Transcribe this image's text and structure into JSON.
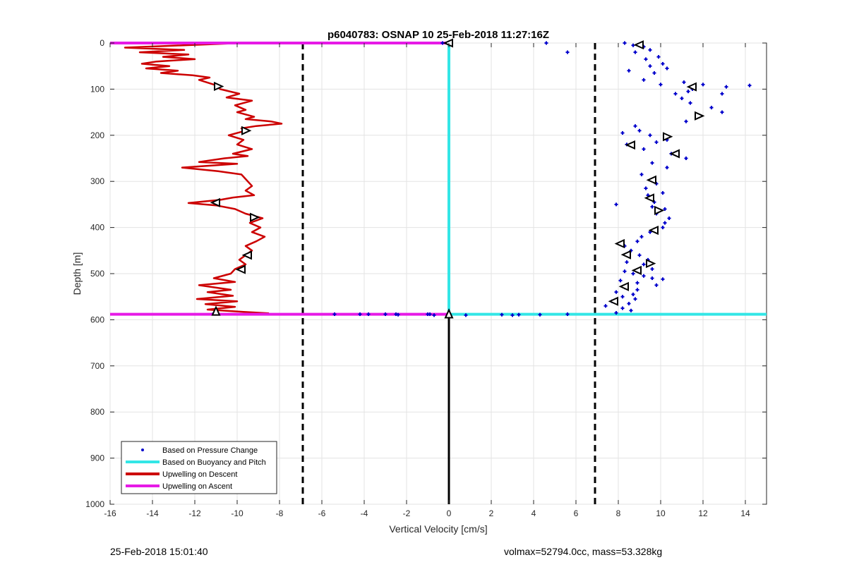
{
  "chart_data": {
    "type": "line",
    "title": "p6040783: OSNAP 10 25-Feb-2018 11:27:16Z",
    "xlabel": "Vertical Velocity [cm/s]",
    "ylabel": "Depth [m]",
    "xlim": [
      -16,
      15
    ],
    "ylim": [
      0,
      1000
    ],
    "y_reversed": true,
    "grid": true,
    "x_ticks": [
      -16,
      -14,
      -12,
      -10,
      -8,
      -6,
      -4,
      -2,
      0,
      2,
      4,
      6,
      8,
      10,
      12,
      14
    ],
    "y_ticks": [
      0,
      100,
      200,
      300,
      400,
      500,
      600,
      700,
      800,
      900,
      1000
    ],
    "legend_position": "bottom-left",
    "legend": [
      {
        "label": "Based on Pressure Change",
        "color": "#0000cc",
        "style": "dot"
      },
      {
        "label": "Based on Buoyancy and Pitch",
        "color": "#33e6e6",
        "style": "line"
      },
      {
        "label": "Upwelling on Descent",
        "color": "#cc0000",
        "style": "line"
      },
      {
        "label": "Upwelling on Ascent",
        "color": "#e61ae6",
        "style": "line"
      }
    ],
    "vertical_reference_lines": [
      {
        "x": -6.9,
        "style": "dashed",
        "color": "#000000"
      },
      {
        "x": 6.9,
        "style": "dashed",
        "color": "#000000"
      },
      {
        "x": 0,
        "style": "solid",
        "color": "#000000",
        "y_from": 590,
        "y_to": 1000
      }
    ],
    "series": [
      {
        "kind": "line",
        "color": "#cc0000",
        "points": [
          [
            -9.8,
            0
          ],
          [
            -15.3,
            10
          ],
          [
            -12.5,
            15
          ],
          [
            -14.6,
            20
          ],
          [
            -12.3,
            25
          ],
          [
            -13.5,
            30
          ],
          [
            -12.0,
            35
          ],
          [
            -13.8,
            40
          ],
          [
            -14.5,
            45
          ],
          [
            -13.2,
            50
          ],
          [
            -14.3,
            55
          ],
          [
            -12.8,
            60
          ],
          [
            -13.6,
            65
          ],
          [
            -12.1,
            70
          ],
          [
            -11.3,
            75
          ],
          [
            -11.8,
            80
          ],
          [
            -11.1,
            90
          ],
          [
            -10.8,
            100
          ],
          [
            -9.9,
            110
          ],
          [
            -10.5,
            118
          ],
          [
            -9.3,
            125
          ],
          [
            -10.1,
            135
          ],
          [
            -9.6,
            145
          ],
          [
            -10.0,
            150
          ],
          [
            -9.2,
            160
          ],
          [
            -9.6,
            165
          ],
          [
            -8.4,
            170
          ],
          [
            -7.9,
            175
          ],
          [
            -9.1,
            180
          ],
          [
            -9.8,
            185
          ],
          [
            -9.6,
            190
          ],
          [
            -10.4,
            200
          ],
          [
            -9.7,
            210
          ],
          [
            -10.0,
            220
          ],
          [
            -9.3,
            230
          ],
          [
            -10.2,
            240
          ],
          [
            -9.5,
            245
          ],
          [
            -10.6,
            250
          ],
          [
            -11.8,
            258
          ],
          [
            -10.0,
            262
          ],
          [
            -12.6,
            270
          ],
          [
            -10.9,
            278
          ],
          [
            -9.8,
            285
          ],
          [
            -9.6,
            295
          ],
          [
            -9.3,
            310
          ],
          [
            -9.6,
            320
          ],
          [
            -9.2,
            330
          ],
          [
            -10.2,
            335
          ],
          [
            -10.8,
            340
          ],
          [
            -12.3,
            347
          ],
          [
            -11.0,
            352
          ],
          [
            -10.1,
            360
          ],
          [
            -9.6,
            370
          ],
          [
            -8.8,
            380
          ],
          [
            -9.4,
            390
          ],
          [
            -8.9,
            400
          ],
          [
            -9.3,
            410
          ],
          [
            -8.7,
            420
          ],
          [
            -9.1,
            430
          ],
          [
            -9.6,
            440
          ],
          [
            -9.3,
            450
          ],
          [
            -9.6,
            460
          ],
          [
            -9.9,
            470
          ],
          [
            -9.6,
            480
          ],
          [
            -10.1,
            490
          ],
          [
            -10.3,
            500
          ],
          [
            -11.1,
            510
          ],
          [
            -10.1,
            518
          ],
          [
            -11.8,
            525
          ],
          [
            -10.3,
            535
          ],
          [
            -11.4,
            540
          ],
          [
            -10.2,
            548
          ],
          [
            -11.9,
            555
          ],
          [
            -10.0,
            560
          ],
          [
            -11.5,
            566
          ],
          [
            -10.1,
            572
          ],
          [
            -11.4,
            578
          ],
          [
            -9.7,
            583
          ],
          [
            -8.5,
            586
          ]
        ]
      },
      {
        "kind": "line",
        "color": "#e61ae6",
        "points": [
          [
            -16,
            0
          ],
          [
            0,
            0
          ],
          [
            0,
            588
          ],
          [
            -16,
            588
          ]
        ]
      },
      {
        "kind": "line",
        "color": "#33e6e6",
        "points": [
          [
            0,
            0
          ],
          [
            0,
            588
          ],
          [
            15,
            588
          ]
        ]
      },
      {
        "kind": "scatter",
        "color": "#0000cc",
        "points": [
          [
            4.6,
            0
          ],
          [
            5.6,
            20
          ],
          [
            8.3,
            0
          ],
          [
            8.7,
            5
          ],
          [
            9.2,
            8
          ],
          [
            9.5,
            15
          ],
          [
            9.9,
            30
          ],
          [
            9.3,
            35
          ],
          [
            8.8,
            20
          ],
          [
            10.1,
            45
          ],
          [
            9.5,
            50
          ],
          [
            10.3,
            55
          ],
          [
            8.5,
            60
          ],
          [
            9.7,
            65
          ],
          [
            9.2,
            80
          ],
          [
            10.0,
            90
          ],
          [
            11.1,
            85
          ],
          [
            12.0,
            90
          ],
          [
            11.5,
            100
          ],
          [
            11.3,
            105
          ],
          [
            12.9,
            110
          ],
          [
            13.1,
            95
          ],
          [
            14.2,
            92
          ],
          [
            10.7,
            110
          ],
          [
            11.0,
            120
          ],
          [
            11.4,
            130
          ],
          [
            12.4,
            140
          ],
          [
            12.9,
            150
          ],
          [
            11.7,
            160
          ],
          [
            11.2,
            170
          ],
          [
            8.8,
            180
          ],
          [
            9.0,
            190
          ],
          [
            8.2,
            195
          ],
          [
            9.5,
            200
          ],
          [
            10.3,
            210
          ],
          [
            9.8,
            215
          ],
          [
            8.4,
            220
          ],
          [
            9.2,
            230
          ],
          [
            10.5,
            240
          ],
          [
            11.2,
            250
          ],
          [
            9.6,
            260
          ],
          [
            10.3,
            270
          ],
          [
            9.1,
            285
          ],
          [
            9.7,
            295
          ],
          [
            9.8,
            305
          ],
          [
            9.3,
            315
          ],
          [
            10.1,
            325
          ],
          [
            9.4,
            330
          ],
          [
            9.7,
            345
          ],
          [
            7.9,
            350
          ],
          [
            9.6,
            355
          ],
          [
            10.2,
            360
          ],
          [
            9.8,
            370
          ],
          [
            10.4,
            380
          ],
          [
            10.2,
            390
          ],
          [
            10.1,
            400
          ],
          [
            9.5,
            410
          ],
          [
            9.1,
            420
          ],
          [
            8.9,
            430
          ],
          [
            8.3,
            440
          ],
          [
            8.6,
            450
          ],
          [
            9.0,
            460
          ],
          [
            9.4,
            470
          ],
          [
            8.4,
            475
          ],
          [
            9.2,
            480
          ],
          [
            9.6,
            490
          ],
          [
            8.3,
            495
          ],
          [
            8.7,
            500
          ],
          [
            9.2,
            505
          ],
          [
            9.6,
            510
          ],
          [
            10.1,
            512
          ],
          [
            8.1,
            515
          ],
          [
            8.9,
            520
          ],
          [
            9.8,
            525
          ],
          [
            8.3,
            530
          ],
          [
            8.9,
            535
          ],
          [
            7.9,
            540
          ],
          [
            8.7,
            545
          ],
          [
            8.2,
            550
          ],
          [
            8.8,
            555
          ],
          [
            7.7,
            560
          ],
          [
            8.5,
            565
          ],
          [
            7.4,
            570
          ],
          [
            8.2,
            575
          ],
          [
            8.6,
            580
          ],
          [
            7.9,
            585
          ],
          [
            -0.3,
            0
          ],
          [
            -2.5,
            588
          ],
          [
            -3.0,
            588
          ],
          [
            -4.2,
            588
          ],
          [
            -3.8,
            588
          ],
          [
            -5.4,
            588
          ],
          [
            -1.0,
            588
          ],
          [
            -0.9,
            588
          ],
          [
            -2.4,
            589
          ],
          [
            -0.7,
            590
          ],
          [
            0.8,
            590
          ],
          [
            2.5,
            589
          ],
          [
            3.0,
            590
          ],
          [
            3.3,
            589
          ],
          [
            4.3,
            589
          ],
          [
            5.6,
            588
          ],
          [
            -11.1,
            586
          ]
        ]
      },
      {
        "kind": "markers",
        "color": "#000000",
        "marker": "triangle",
        "points": [
          [
            9.0,
            4,
            "left"
          ],
          [
            -10.9,
            94,
            "right"
          ],
          [
            11.5,
            95,
            "left"
          ],
          [
            11.8,
            158,
            "right"
          ],
          [
            -9.6,
            190,
            "right"
          ],
          [
            10.3,
            203,
            "right"
          ],
          [
            8.6,
            221,
            "left"
          ],
          [
            10.7,
            240,
            "left"
          ],
          [
            9.6,
            297,
            "left"
          ],
          [
            9.5,
            336,
            "left"
          ],
          [
            -11.0,
            346,
            "left"
          ],
          [
            9.9,
            363,
            "right"
          ],
          [
            -9.2,
            378,
            "right"
          ],
          [
            9.7,
            406,
            "left"
          ],
          [
            8.1,
            435,
            "left"
          ],
          [
            8.4,
            459,
            "left"
          ],
          [
            -9.5,
            460,
            "left"
          ],
          [
            9.5,
            478,
            "right"
          ],
          [
            -9.8,
            491,
            "left"
          ],
          [
            8.9,
            493,
            "left"
          ],
          [
            8.3,
            528,
            "left"
          ],
          [
            7.8,
            560,
            "left"
          ],
          [
            -11.0,
            582,
            "up"
          ],
          [
            0.0,
            0,
            "left"
          ],
          [
            0.0,
            588,
            "up"
          ]
        ]
      }
    ]
  },
  "footer": {
    "timestamp": "25-Feb-2018 15:01:40",
    "params": "volmax=52794.0cc, mass=53.328kg"
  }
}
